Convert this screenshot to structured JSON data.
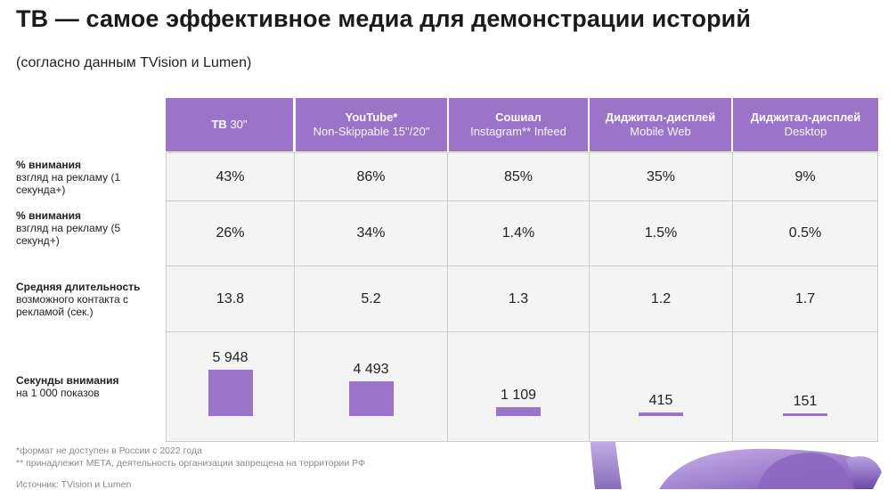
{
  "title": "ТВ — самое эффективное медиа для демонстрации историй",
  "subtitle": "(согласно данным TVision и Lumen)",
  "columns": [
    {
      "bold": "ТВ",
      "rest": " 30\"",
      "line2": ""
    },
    {
      "bold": "YouTube*",
      "rest": "",
      "line2": "Non-Skippable 15\"/20\""
    },
    {
      "bold": "Сошиал",
      "rest": "",
      "line2": "Instagram** Infeed"
    },
    {
      "bold": "Диджитал-дисплей",
      "rest": "",
      "line2": "Mobile Web"
    },
    {
      "bold": "Диджитал-дисплей",
      "rest": "",
      "line2": "Desktop"
    }
  ],
  "rows": [
    {
      "label_bold": "% внимания",
      "label_rest": "взгляд на рекламу (1 секунда+)",
      "values": [
        "43%",
        "86%",
        "85%",
        "35%",
        "9%"
      ]
    },
    {
      "label_bold": "% внимания",
      "label_rest": "взгляд на рекламу (5 секунд+)",
      "values": [
        "26%",
        "34%",
        "1.4%",
        "1.5%",
        "0.5%"
      ]
    },
    {
      "label_bold": "Средняя длительность",
      "label_rest": "возможного контакта с рекламой (сек.)",
      "values": [
        "13.8",
        "5.2",
        "1.3",
        "1.2",
        "1.7"
      ]
    }
  ],
  "chart_data": {
    "type": "bar",
    "row_label_bold": "Секунды внимания",
    "row_label_rest": "на 1 000 показов",
    "categories": [
      "ТВ 30\"",
      "YouTube* Non-Skippable 15\"/20\"",
      "Сошиал Instagram** Infeed",
      "Диджитал-дисплей Mobile Web",
      "Диджитал-дисплей Desktop"
    ],
    "values": [
      5948,
      4493,
      1109,
      415,
      151
    ],
    "value_labels": [
      "5 948",
      "4 493",
      "1 109",
      "415",
      "151"
    ],
    "color": "#9b73c8"
  },
  "footnotes": [
    "*формат не доступен в России с 2022 года",
    "** принадлежит META, деятельность организации запрещена на территории РФ",
    "Источник: TVision и Lumen"
  ]
}
